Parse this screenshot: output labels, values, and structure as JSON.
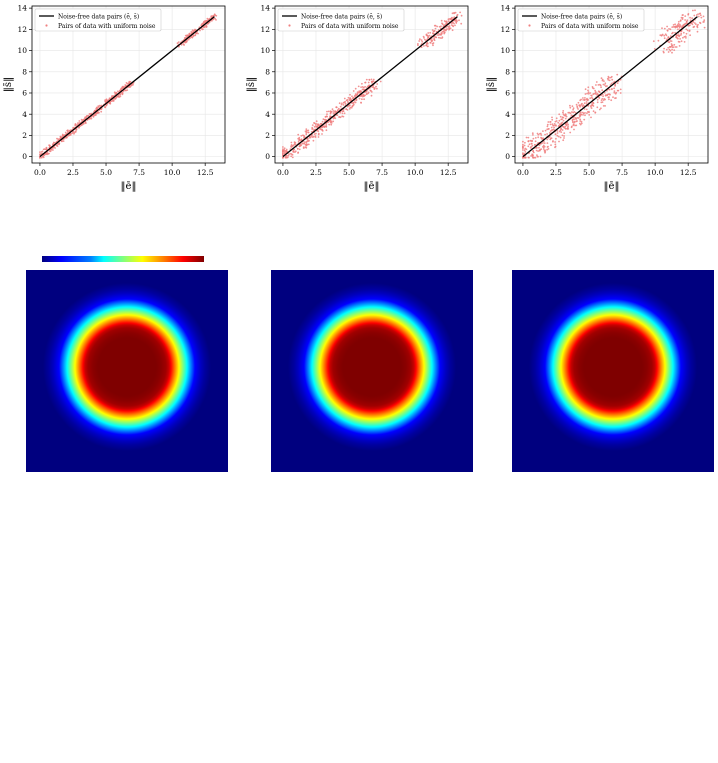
{
  "colors": {
    "line": "#000000",
    "noise_points": "#f08080",
    "heat_background": "#00007f"
  },
  "chart_data": [
    {
      "type": "scatter",
      "xlabel": "‖ē‖",
      "ylabel": "‖s̄‖",
      "xlim": [
        -0.6,
        14.0
      ],
      "ylim": [
        -0.6,
        14.2
      ],
      "xticks": [
        "0.0",
        "2.5",
        "5.0",
        "7.5",
        "10.0",
        "12.5"
      ],
      "yticks": [
        "0",
        "2",
        "4",
        "6",
        "8",
        "10",
        "12",
        "14"
      ],
      "grid": true,
      "legend_position": "top-left",
      "series": [
        {
          "name": "Noise-free data pairs (ē, s̄)",
          "kind": "line",
          "x": [
            0.0,
            13.2
          ],
          "y": [
            0.0,
            13.2
          ]
        },
        {
          "name": "Pairs of data with uniform noise",
          "kind": "scatter",
          "noise_level": 0.25,
          "clusters": [
            [
              0.0,
              3.0
            ],
            [
              3.0,
              7.0
            ],
            [
              10.5,
              13.2
            ]
          ]
        }
      ]
    },
    {
      "type": "scatter",
      "xlabel": "‖ē‖",
      "ylabel": "‖s̄‖",
      "xlim": [
        -0.6,
        14.0
      ],
      "ylim": [
        -0.6,
        14.2
      ],
      "xticks": [
        "0.0",
        "2.5",
        "5.0",
        "7.5",
        "10.0",
        "12.5"
      ],
      "yticks": [
        "0",
        "2",
        "4",
        "6",
        "8",
        "10",
        "12",
        "14"
      ],
      "grid": true,
      "legend_position": "top-left",
      "series": [
        {
          "name": "Noise-free data pairs (ē, s̄)",
          "kind": "line",
          "x": [
            0.0,
            13.2
          ],
          "y": [
            0.0,
            13.2
          ]
        },
        {
          "name": "Pairs of data with uniform noise",
          "kind": "scatter",
          "noise_level": 0.55,
          "clusters": [
            [
              0.0,
              3.0
            ],
            [
              3.0,
              7.0
            ],
            [
              10.5,
              13.2
            ]
          ]
        }
      ]
    },
    {
      "type": "scatter",
      "xlabel": "‖ē‖",
      "ylabel": "‖s̄‖",
      "xlim": [
        -0.6,
        14.0
      ],
      "ylim": [
        -0.6,
        14.2
      ],
      "xticks": [
        "0.0",
        "2.5",
        "5.0",
        "7.5",
        "10.0",
        "12.5"
      ],
      "yticks": [
        "0",
        "2",
        "4",
        "6",
        "8",
        "10",
        "12",
        "14"
      ],
      "grid": true,
      "legend_position": "top-left",
      "series": [
        {
          "name": "Noise-free data pairs (ē, s̄)",
          "kind": "line",
          "x": [
            0.0,
            13.2
          ],
          "y": [
            0.0,
            13.2
          ]
        },
        {
          "name": "Pairs of data with uniform noise",
          "kind": "scatter",
          "noise_level": 0.95,
          "clusters": [
            [
              0.0,
              3.0
            ],
            [
              3.0,
              7.0
            ],
            [
              10.5,
              13.2
            ]
          ]
        }
      ]
    },
    {
      "type": "heatmap",
      "colormap": "jet",
      "shape": "radial disk centered in square field",
      "colorbar": true
    },
    {
      "type": "heatmap",
      "colormap": "jet",
      "shape": "radial disk centered in square field"
    },
    {
      "type": "heatmap",
      "colormap": "jet",
      "shape": "radial disk centered in square field"
    }
  ]
}
